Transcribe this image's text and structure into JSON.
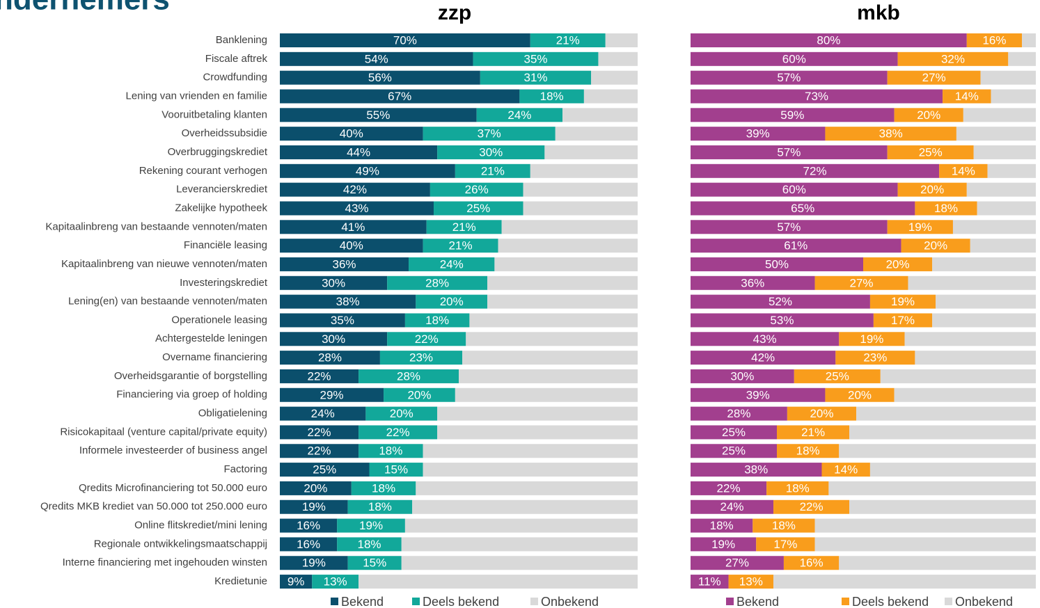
{
  "heading": "ndernemers",
  "chart_data": [
    {
      "type": "stacked-bar-horizontal",
      "title": "zzp",
      "categories": [
        "Banklening",
        "Fiscale aftrek",
        "Crowdfunding",
        "Lening van vrienden en familie",
        "Vooruitbetaling klanten",
        "Overheidssubsidie",
        "Overbruggingskrediet",
        "Rekening courant verhogen",
        "Leverancierskrediet",
        "Zakelijke hypotheek",
        "Kapitaalinbreng van bestaande vennoten/maten",
        "Financiële leasing",
        "Kapitaalinbreng van nieuwe vennoten/maten",
        "Investeringskrediet",
        "Lening(en) van bestaande vennoten/maten",
        "Operationele leasing",
        "Achtergestelde leningen",
        "Overname financiering",
        "Overheidsgarantie of borgstelling",
        "Financiering via groep of holding",
        "Obligatielening",
        "Risicokapitaal (venture capital/private equity)",
        "Informele investeerder of business angel",
        "Factoring",
        "Qredits Microfinanciering tot 50.000 euro",
        "Qredits MKB krediet van 50.000 tot 250.000 euro",
        "Online flitskrediet/mini lening",
        "Regionale ontwikkelingsmaatschappij",
        "Interne financiering met ingehouden winsten",
        "Kredietunie"
      ],
      "xlim": [
        0,
        100
      ],
      "series": [
        {
          "name": "Bekend",
          "color": "#0b4f6c",
          "values": [
            70,
            54,
            56,
            67,
            55,
            40,
            44,
            49,
            42,
            43,
            41,
            40,
            36,
            30,
            38,
            35,
            30,
            28,
            22,
            29,
            24,
            22,
            22,
            25,
            20,
            19,
            16,
            16,
            19,
            9
          ],
          "value_labels": [
            "70%",
            "54%",
            "56%",
            "67%",
            "55%",
            "40%",
            "44%",
            "49%",
            "42%",
            "43%",
            "41%",
            "40%",
            "36%",
            "30%",
            "38%",
            "35%",
            "30%",
            "28%",
            "22%",
            "29%",
            "24%",
            "22%",
            "22%",
            "25%",
            "20%",
            "19%",
            "16%",
            "16%",
            "19%",
            "9%"
          ]
        },
        {
          "name": "Deels bekend",
          "color": "#12a89a",
          "values": [
            21,
            35,
            31,
            18,
            24,
            37,
            30,
            21,
            26,
            25,
            21,
            21,
            24,
            28,
            20,
            18,
            22,
            23,
            28,
            20,
            20,
            22,
            18,
            15,
            18,
            18,
            19,
            18,
            15,
            13
          ],
          "value_labels": [
            "21%",
            "35%",
            "31%",
            "18%",
            "24%",
            "37%",
            "30%",
            "21%",
            "26%",
            "25%",
            "21%",
            "21%",
            "24%",
            "28%",
            "20%",
            "18%",
            "22%",
            "23%",
            "28%",
            "20%",
            "20%",
            "22%",
            "18%",
            "15%",
            "18%",
            "18%",
            "19%",
            "18%",
            "15%",
            "13%"
          ]
        },
        {
          "name": "Onbekend",
          "color": "#d9d9d9",
          "values": [
            9,
            11,
            13,
            15,
            21,
            23,
            26,
            30,
            32,
            32,
            38,
            39,
            40,
            42,
            42,
            47,
            48,
            49,
            50,
            51,
            56,
            56,
            60,
            60,
            62,
            63,
            65,
            66,
            66,
            78
          ]
        }
      ]
    },
    {
      "type": "stacked-bar-horizontal",
      "title": "mkb",
      "xlim": [
        0,
        100
      ],
      "series": [
        {
          "name": "Bekend",
          "color": "#a23f8e",
          "values": [
            80,
            60,
            57,
            73,
            59,
            39,
            57,
            72,
            60,
            65,
            57,
            61,
            50,
            36,
            52,
            53,
            43,
            42,
            30,
            39,
            28,
            25,
            25,
            38,
            22,
            24,
            18,
            19,
            27,
            11
          ],
          "value_labels": [
            "80%",
            "60%",
            "57%",
            "73%",
            "59%",
            "39%",
            "57%",
            "72%",
            "60%",
            "65%",
            "57%",
            "61%",
            "50%",
            "36%",
            "52%",
            "53%",
            "43%",
            "42%",
            "30%",
            "39%",
            "28%",
            "25%",
            "25%",
            "38%",
            "22%",
            "24%",
            "18%",
            "19%",
            "27%",
            "11%"
          ]
        },
        {
          "name": "Deels bekend",
          "color": "#f99d1c",
          "values": [
            16,
            32,
            27,
            14,
            20,
            38,
            25,
            14,
            20,
            18,
            19,
            20,
            20,
            27,
            19,
            17,
            19,
            23,
            25,
            20,
            20,
            21,
            18,
            14,
            18,
            22,
            18,
            17,
            16,
            13
          ],
          "value_labels": [
            "16%",
            "32%",
            "27%",
            "14%",
            "20%",
            "38%",
            "25%",
            "14%",
            "20%",
            "18%",
            "19%",
            "20%",
            "20%",
            "27%",
            "19%",
            "17%",
            "19%",
            "23%",
            "25%",
            "20%",
            "20%",
            "21%",
            "18%",
            "14%",
            "18%",
            "22%",
            "18%",
            "17%",
            "16%",
            "13%"
          ]
        },
        {
          "name": "Onbekend",
          "color": "#d9d9d9",
          "values": [
            4,
            8,
            16,
            13,
            21,
            23,
            18,
            14,
            20,
            17,
            24,
            19,
            30,
            37,
            29,
            30,
            38,
            35,
            45,
            41,
            52,
            54,
            57,
            48,
            60,
            54,
            64,
            64,
            57,
            76
          ]
        }
      ]
    }
  ]
}
